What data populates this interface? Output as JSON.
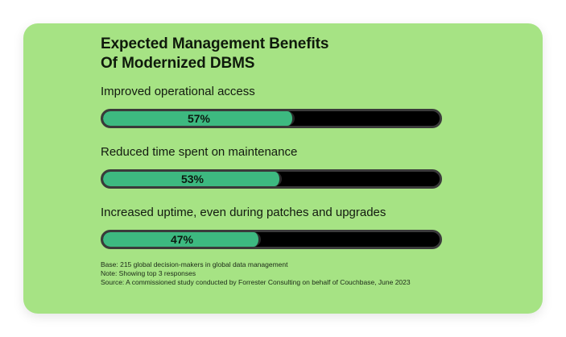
{
  "chart_data": {
    "type": "bar",
    "orientation": "horizontal",
    "title": "Expected Management Benefits Of Modernized DBMS",
    "title_lines": [
      "Expected Management Benefits",
      "Of Modernized DBMS"
    ],
    "categories": [
      "Improved operational access",
      "Reduced time spent on maintenance",
      "Increased uptime, even during patches and upgrades"
    ],
    "values": [
      57,
      53,
      47
    ],
    "value_labels": [
      "57%",
      "53%",
      "47%"
    ],
    "unit": "%",
    "xlim": [
      0,
      100
    ],
    "grid": false,
    "colors": {
      "fill": "#3db980",
      "track": "#000000",
      "background": "#a6e384"
    }
  },
  "footnotes": [
    "Base: 215 global decision-makers in global data management",
    "Note: Showing top 3 responses",
    "Source: A commissioned study conducted by Forrester Consulting on behalf of Couchbase, June 2023"
  ]
}
